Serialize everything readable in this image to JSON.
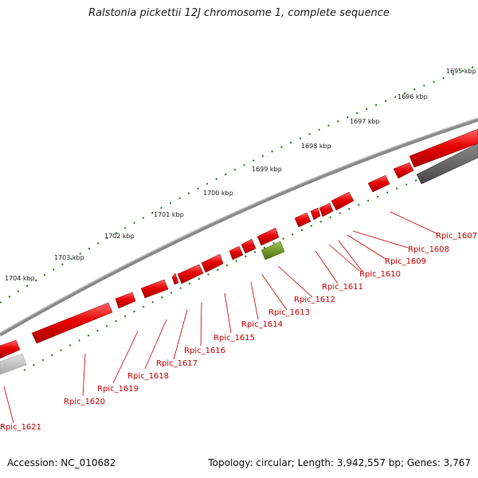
{
  "title": "Ralstonia pickettii 12J chromosome 1, complete sequence",
  "footer": {
    "accession": "Accession: NC_010682",
    "summary": "Topology: circular; Length: 3,942,557 bp; Genes: 3,767"
  },
  "colors": {
    "gene_forward": "#e60000",
    "gene_reverse_selected": "#6a8f1c",
    "gene_other_dark": "#606060",
    "gene_other_light": "#c0c0c0",
    "backbone": "#8a8a8a",
    "tick": "#1e7a1e",
    "label_line": "#cc0000"
  },
  "scale_labels": [
    "1695 kbp",
    "1696 kbp",
    "1697 kbp",
    "1698 kbp",
    "1699 kbp",
    "1700 kbp",
    "1701 kbp",
    "1702 kbp",
    "1703 kbp",
    "1704 kbp"
  ],
  "gene_labels": [
    "Rpic_1607",
    "Rpic_1608",
    "Rpic_1609",
    "Rpic_1610",
    "Rpic_1611",
    "Rpic_1612",
    "Rpic_1613",
    "Rpic_1614",
    "Rpic_1615",
    "Rpic_1616",
    "Rpic_1617",
    "Rpic_1618",
    "Rpic_1619",
    "Rpic_1620",
    "Rpic_1621"
  ]
}
